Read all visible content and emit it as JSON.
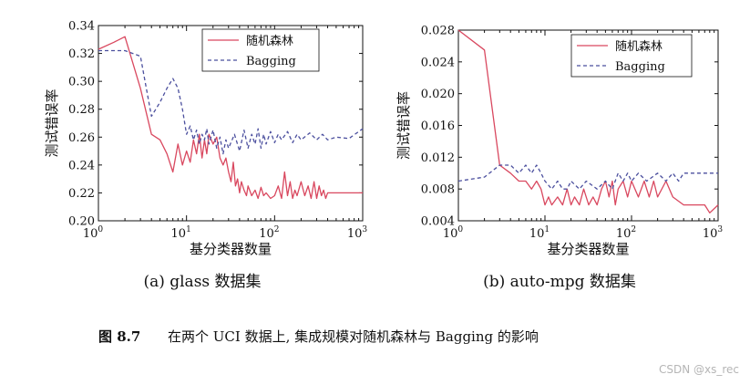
{
  "colors": {
    "rf": "#d9485f",
    "bagging": "#4b4f9e",
    "axis": "#111111"
  },
  "figure_caption": {
    "label": "图 8.7",
    "text": "在两个 UCI 数据上, 集成规模对随机森林与 Bagging 的影响"
  },
  "watermark": "CSDN @xs_rec",
  "chart_data": [
    {
      "type": "line",
      "caption": "(a) glass 数据集",
      "xlabel": "基分类器数量",
      "ylabel": "测试错误率",
      "xscale": "log",
      "xlim": [
        1,
        1000
      ],
      "ylim": [
        0.2,
        0.34
      ],
      "xticks": [
        1,
        10,
        100,
        1000
      ],
      "xtick_labels": [
        {
          "base": "10",
          "exp": "0"
        },
        {
          "base": "10",
          "exp": "1"
        },
        {
          "base": "10",
          "exp": "2"
        },
        {
          "base": "10",
          "exp": "3"
        }
      ],
      "yticks": [
        0.2,
        0.22,
        0.24,
        0.26,
        0.28,
        0.3,
        0.32,
        0.34
      ],
      "ytick_labels": [
        "0.20",
        "0.22",
        "0.24",
        "0.26",
        "0.28",
        "0.30",
        "0.32",
        "0.34"
      ],
      "legend_position": "top-right",
      "series": [
        {
          "name": "随机森林",
          "style": "solid",
          "color": "#d9485f",
          "points": [
            [
              1,
              0.323
            ],
            [
              1.5,
              0.328
            ],
            [
              2,
              0.332
            ],
            [
              3,
              0.295
            ],
            [
              4,
              0.262
            ],
            [
              5,
              0.258
            ],
            [
              6,
              0.248
            ],
            [
              7,
              0.235
            ],
            [
              8,
              0.255
            ],
            [
              9,
              0.24
            ],
            [
              10,
              0.25
            ],
            [
              11,
              0.242
            ],
            [
              12,
              0.258
            ],
            [
              13,
              0.248
            ],
            [
              14,
              0.262
            ],
            [
              15,
              0.245
            ],
            [
              16,
              0.258
            ],
            [
              17,
              0.248
            ],
            [
              18,
              0.262
            ],
            [
              20,
              0.255
            ],
            [
              22,
              0.26
            ],
            [
              24,
              0.245
            ],
            [
              26,
              0.24
            ],
            [
              28,
              0.245
            ],
            [
              30,
              0.235
            ],
            [
              32,
              0.228
            ],
            [
              34,
              0.242
            ],
            [
              36,
              0.225
            ],
            [
              38,
              0.23
            ],
            [
              40,
              0.22
            ],
            [
              42,
              0.228
            ],
            [
              45,
              0.222
            ],
            [
              48,
              0.218
            ],
            [
              50,
              0.225
            ],
            [
              55,
              0.218
            ],
            [
              60,
              0.222
            ],
            [
              65,
              0.216
            ],
            [
              70,
              0.224
            ],
            [
              75,
              0.218
            ],
            [
              80,
              0.22
            ],
            [
              90,
              0.216
            ],
            [
              100,
              0.218
            ],
            [
              110,
              0.225
            ],
            [
              120,
              0.216
            ],
            [
              130,
              0.235
            ],
            [
              140,
              0.218
            ],
            [
              150,
              0.228
            ],
            [
              160,
              0.216
            ],
            [
              170,
              0.222
            ],
            [
              180,
              0.218
            ],
            [
              200,
              0.228
            ],
            [
              220,
              0.218
            ],
            [
              240,
              0.225
            ],
            [
              260,
              0.216
            ],
            [
              280,
              0.228
            ],
            [
              300,
              0.216
            ],
            [
              320,
              0.225
            ],
            [
              340,
              0.218
            ],
            [
              360,
              0.222
            ],
            [
              380,
              0.216
            ],
            [
              400,
              0.22
            ],
            [
              500,
              0.22
            ],
            [
              700,
              0.22
            ],
            [
              1000,
              0.22
            ]
          ]
        },
        {
          "name": "Bagging",
          "style": "dashed",
          "color": "#4b4f9e",
          "points": [
            [
              1,
              0.322
            ],
            [
              2,
              0.322
            ],
            [
              3,
              0.318
            ],
            [
              4,
              0.275
            ],
            [
              5,
              0.285
            ],
            [
              6,
              0.295
            ],
            [
              7,
              0.302
            ],
            [
              8,
              0.295
            ],
            [
              9,
              0.28
            ],
            [
              10,
              0.262
            ],
            [
              11,
              0.268
            ],
            [
              12,
              0.258
            ],
            [
              13,
              0.265
            ],
            [
              14,
              0.255
            ],
            [
              15,
              0.262
            ],
            [
              16,
              0.258
            ],
            [
              17,
              0.266
            ],
            [
              18,
              0.255
            ],
            [
              20,
              0.265
            ],
            [
              22,
              0.252
            ],
            [
              24,
              0.26
            ],
            [
              26,
              0.248
            ],
            [
              28,
              0.258
            ],
            [
              30,
              0.252
            ],
            [
              35,
              0.262
            ],
            [
              40,
              0.25
            ],
            [
              45,
              0.265
            ],
            [
              50,
              0.252
            ],
            [
              55,
              0.262
            ],
            [
              60,
              0.255
            ],
            [
              65,
              0.266
            ],
            [
              70,
              0.252
            ],
            [
              75,
              0.262
            ],
            [
              80,
              0.255
            ],
            [
              90,
              0.264
            ],
            [
              100,
              0.256
            ],
            [
              110,
              0.262
            ],
            [
              120,
              0.258
            ],
            [
              140,
              0.264
            ],
            [
              160,
              0.256
            ],
            [
              180,
              0.262
            ],
            [
              200,
              0.258
            ],
            [
              250,
              0.263
            ],
            [
              300,
              0.258
            ],
            [
              350,
              0.262
            ],
            [
              400,
              0.258
            ],
            [
              500,
              0.26
            ],
            [
              700,
              0.259
            ],
            [
              1000,
              0.266
            ]
          ]
        }
      ]
    },
    {
      "type": "line",
      "caption": "(b) auto-mpg 数据集",
      "xlabel": "基分类器数量",
      "ylabel": "测试错误率",
      "xscale": "log",
      "xlim": [
        1,
        1000
      ],
      "ylim": [
        0.004,
        0.028
      ],
      "xticks": [
        1,
        10,
        100,
        1000
      ],
      "xtick_labels": [
        {
          "base": "10",
          "exp": "0"
        },
        {
          "base": "10",
          "exp": "1"
        },
        {
          "base": "10",
          "exp": "2"
        },
        {
          "base": "10",
          "exp": "3"
        }
      ],
      "yticks": [
        0.004,
        0.008,
        0.012,
        0.016,
        0.02,
        0.024,
        0.028
      ],
      "ytick_labels": [
        "0.004",
        "0.008",
        "0.012",
        "0.016",
        "0.020",
        "0.024",
        "0.028"
      ],
      "legend_position": "top-right",
      "series": [
        {
          "name": "随机森林",
          "style": "solid",
          "color": "#d9485f",
          "points": [
            [
              1,
              0.028
            ],
            [
              2,
              0.0255
            ],
            [
              3,
              0.011
            ],
            [
              4,
              0.01
            ],
            [
              5,
              0.009
            ],
            [
              6,
              0.009
            ],
            [
              7,
              0.008
            ],
            [
              8,
              0.009
            ],
            [
              9,
              0.008
            ],
            [
              10,
              0.006
            ],
            [
              11,
              0.007
            ],
            [
              12,
              0.006
            ],
            [
              14,
              0.007
            ],
            [
              16,
              0.006
            ],
            [
              18,
              0.008
            ],
            [
              20,
              0.006
            ],
            [
              22,
              0.007
            ],
            [
              25,
              0.006
            ],
            [
              28,
              0.008
            ],
            [
              32,
              0.006
            ],
            [
              36,
              0.007
            ],
            [
              40,
              0.006
            ],
            [
              45,
              0.008
            ],
            [
              50,
              0.009
            ],
            [
              55,
              0.007
            ],
            [
              60,
              0.009
            ],
            [
              65,
              0.006
            ],
            [
              70,
              0.008
            ],
            [
              80,
              0.009
            ],
            [
              90,
              0.007
            ],
            [
              100,
              0.009
            ],
            [
              120,
              0.007
            ],
            [
              140,
              0.009
            ],
            [
              160,
              0.007
            ],
            [
              180,
              0.009
            ],
            [
              200,
              0.007
            ],
            [
              250,
              0.009
            ],
            [
              300,
              0.007
            ],
            [
              400,
              0.006
            ],
            [
              500,
              0.006
            ],
            [
              700,
              0.006
            ],
            [
              800,
              0.005
            ],
            [
              1000,
              0.006
            ]
          ]
        },
        {
          "name": "Bagging",
          "style": "dashed",
          "color": "#4b4f9e",
          "points": [
            [
              1,
              0.009
            ],
            [
              2,
              0.0095
            ],
            [
              3,
              0.011
            ],
            [
              4,
              0.011
            ],
            [
              5,
              0.01
            ],
            [
              6,
              0.011
            ],
            [
              7,
              0.01
            ],
            [
              8,
              0.011
            ],
            [
              9,
              0.01
            ],
            [
              10,
              0.009
            ],
            [
              12,
              0.008
            ],
            [
              14,
              0.009
            ],
            [
              16,
              0.008
            ],
            [
              18,
              0.008
            ],
            [
              20,
              0.009
            ],
            [
              25,
              0.008
            ],
            [
              30,
              0.009
            ],
            [
              40,
              0.008
            ],
            [
              50,
              0.009
            ],
            [
              60,
              0.008
            ],
            [
              70,
              0.01
            ],
            [
              80,
              0.009
            ],
            [
              90,
              0.01
            ],
            [
              100,
              0.009
            ],
            [
              120,
              0.01
            ],
            [
              150,
              0.009
            ],
            [
              200,
              0.01
            ],
            [
              250,
              0.009
            ],
            [
              300,
              0.01
            ],
            [
              350,
              0.009
            ],
            [
              400,
              0.01
            ],
            [
              500,
              0.01
            ],
            [
              700,
              0.01
            ],
            [
              1000,
              0.01
            ]
          ]
        }
      ]
    }
  ]
}
